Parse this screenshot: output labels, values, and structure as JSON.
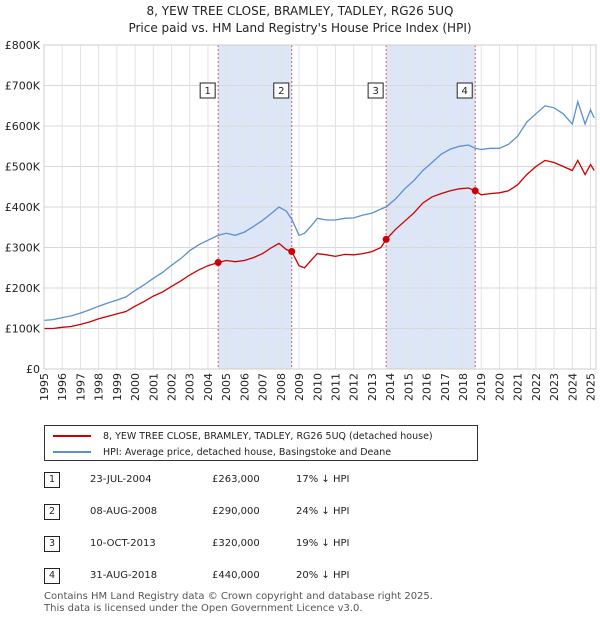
{
  "title_line1": "8, YEW TREE CLOSE, BRAMLEY, TADLEY, RG26 5UQ",
  "title_line2": "Price paid vs. HM Land Registry's House Price Index (HPI)",
  "colors": {
    "price_paid": "#cc0000",
    "hpi": "#5b8fcf",
    "shade": "#dce6f7",
    "marker_line": "#d06060"
  },
  "chart_data": {
    "type": "line",
    "xlim": [
      1995.0,
      2025.3
    ],
    "ylim": [
      0,
      800000
    ],
    "yticks": [
      0,
      100000,
      200000,
      300000,
      400000,
      500000,
      600000,
      700000,
      800000
    ],
    "ytick_labels": [
      "£0",
      "£100K",
      "£200K",
      "£300K",
      "£400K",
      "£500K",
      "£600K",
      "£700K",
      "£800K"
    ],
    "xticks": [
      1995,
      1996,
      1997,
      1998,
      1999,
      2000,
      2001,
      2002,
      2003,
      2004,
      2005,
      2006,
      2007,
      2008,
      2009,
      2010,
      2011,
      2012,
      2013,
      2014,
      2015,
      2016,
      2017,
      2018,
      2019,
      2020,
      2021,
      2022,
      2023,
      2024,
      2025
    ],
    "shaded_periods": [
      [
        2004.56,
        2008.6
      ],
      [
        2013.78,
        2018.67
      ]
    ],
    "series": [
      {
        "name": "8, YEW TREE CLOSE, BRAMLEY, TADLEY, RG26 5UQ (detached house)",
        "color": "#cc0000",
        "x": [
          1995.0,
          1995.5,
          1996.0,
          1996.5,
          1997.0,
          1997.5,
          1998.0,
          1998.5,
          1999.0,
          1999.5,
          2000.0,
          2000.5,
          2001.0,
          2001.5,
          2002.0,
          2002.5,
          2003.0,
          2003.5,
          2004.0,
          2004.56,
          2005.0,
          2005.5,
          2006.0,
          2006.5,
          2007.0,
          2007.5,
          2007.9,
          2008.3,
          2008.6,
          2009.0,
          2009.3,
          2009.7,
          2010.0,
          2010.5,
          2011.0,
          2011.5,
          2012.0,
          2012.5,
          2013.0,
          2013.5,
          2013.78,
          2014.3,
          2014.8,
          2015.3,
          2015.8,
          2016.3,
          2016.8,
          2017.3,
          2017.8,
          2018.3,
          2018.67,
          2019.0,
          2019.5,
          2020.0,
          2020.5,
          2021.0,
          2021.5,
          2022.0,
          2022.5,
          2023.0,
          2023.5,
          2024.0,
          2024.3,
          2024.7,
          2025.0,
          2025.2
        ],
        "values": [
          100000,
          100000,
          103000,
          105000,
          110000,
          116000,
          124000,
          130000,
          136000,
          142000,
          155000,
          167000,
          180000,
          190000,
          204000,
          217000,
          232000,
          245000,
          255000,
          263000,
          268000,
          265000,
          268000,
          275000,
          285000,
          300000,
          310000,
          295000,
          290000,
          255000,
          250000,
          270000,
          285000,
          282000,
          278000,
          283000,
          282000,
          285000,
          290000,
          300000,
          320000,
          345000,
          365000,
          385000,
          410000,
          425000,
          433000,
          440000,
          445000,
          447000,
          440000,
          430000,
          433000,
          435000,
          440000,
          455000,
          480000,
          500000,
          515000,
          510000,
          500000,
          490000,
          515000,
          480000,
          505000,
          490000
        ]
      },
      {
        "name": "HPI: Average price, detached house, Basingstoke and Deane",
        "color": "#5b8fcf",
        "x": [
          1995.0,
          1995.5,
          1996.0,
          1996.5,
          1997.0,
          1997.5,
          1998.0,
          1998.5,
          1999.0,
          1999.5,
          2000.0,
          2000.5,
          2001.0,
          2001.5,
          2002.0,
          2002.5,
          2003.0,
          2003.5,
          2004.0,
          2004.56,
          2005.0,
          2005.5,
          2006.0,
          2006.5,
          2007.0,
          2007.5,
          2007.9,
          2008.3,
          2008.6,
          2009.0,
          2009.3,
          2009.7,
          2010.0,
          2010.5,
          2011.0,
          2011.5,
          2012.0,
          2012.5,
          2013.0,
          2013.5,
          2013.78,
          2014.3,
          2014.8,
          2015.3,
          2015.8,
          2016.3,
          2016.8,
          2017.3,
          2017.8,
          2018.3,
          2018.67,
          2019.0,
          2019.5,
          2020.0,
          2020.5,
          2021.0,
          2021.5,
          2022.0,
          2022.5,
          2023.0,
          2023.5,
          2024.0,
          2024.3,
          2024.7,
          2025.0,
          2025.2
        ],
        "values": [
          120000,
          122000,
          127000,
          131000,
          138000,
          146000,
          155000,
          163000,
          170000,
          178000,
          194000,
          208000,
          224000,
          238000,
          256000,
          272000,
          292000,
          307000,
          318000,
          330000,
          335000,
          330000,
          338000,
          352000,
          367000,
          385000,
          400000,
          390000,
          370000,
          330000,
          335000,
          355000,
          372000,
          368000,
          368000,
          372000,
          373000,
          380000,
          385000,
          395000,
          400000,
          420000,
          445000,
          465000,
          490000,
          510000,
          530000,
          543000,
          550000,
          553000,
          545000,
          542000,
          545000,
          545000,
          555000,
          575000,
          610000,
          630000,
          650000,
          645000,
          630000,
          605000,
          660000,
          605000,
          640000,
          620000
        ]
      }
    ],
    "sales": [
      {
        "label": "1",
        "x": 2004.56,
        "value": 263000
      },
      {
        "label": "2",
        "x": 2008.6,
        "value": 290000
      },
      {
        "label": "3",
        "x": 2013.78,
        "value": 320000
      },
      {
        "label": "4",
        "x": 2018.67,
        "value": 440000
      }
    ]
  },
  "legend": {
    "price_paid": "8, YEW TREE CLOSE, BRAMLEY, TADLEY, RG26 5UQ (detached house)",
    "hpi": "HPI: Average price, detached house, Basingstoke and Deane"
  },
  "sales_table": [
    {
      "num": "1",
      "date": "23-JUL-2004",
      "price": "£263,000",
      "delta": "17% ↓ HPI"
    },
    {
      "num": "2",
      "date": "08-AUG-2008",
      "price": "£290,000",
      "delta": "24% ↓ HPI"
    },
    {
      "num": "3",
      "date": "10-OCT-2013",
      "price": "£320,000",
      "delta": "19% ↓ HPI"
    },
    {
      "num": "4",
      "date": "31-AUG-2018",
      "price": "£440,000",
      "delta": "20% ↓ HPI"
    }
  ],
  "footer_line1": "Contains HM Land Registry data © Crown copyright and database right 2025.",
  "footer_line2": "This data is licensed under the Open Government Licence v3.0."
}
